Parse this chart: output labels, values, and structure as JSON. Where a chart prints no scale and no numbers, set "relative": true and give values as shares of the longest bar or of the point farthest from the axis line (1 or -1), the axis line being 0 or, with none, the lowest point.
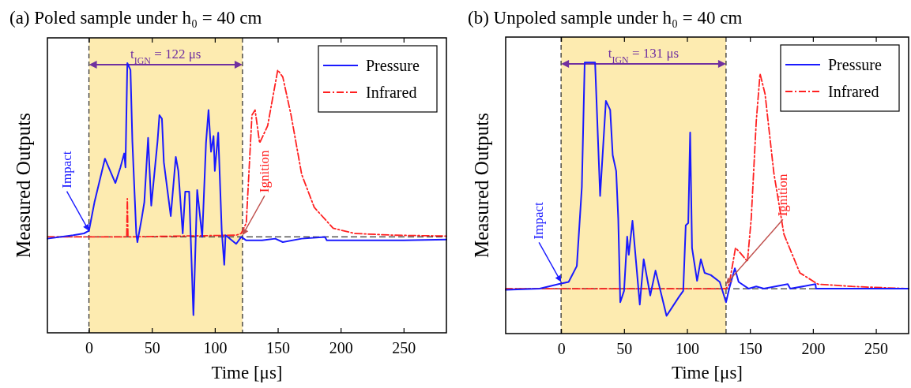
{
  "chart_data": [
    {
      "type": "line",
      "title": "(a)  Poled sample under h₀ = 40 cm",
      "xlabel": "Time  [μs]",
      "ylabel": "Measured Outputs",
      "relative": true,
      "xlim": [
        -33,
        284
      ],
      "xticks": [
        0,
        50,
        100,
        150,
        200,
        250
      ],
      "tick_labels": "x",
      "legend": "top right",
      "series": [
        {
          "name": "Pressure",
          "color": "#1a1aff",
          "line_style": "solid",
          "x": [
            -33,
            -12.5,
            -4,
            0,
            4.4,
            12.7,
            21,
            25,
            28,
            29,
            30.5,
            33,
            34.5,
            37.6,
            38.5,
            42,
            44,
            47,
            49.5,
            54.5,
            56,
            58,
            59.5,
            65,
            69,
            71,
            74.5,
            76.5,
            79.6,
            83,
            86,
            90,
            93,
            95,
            97,
            99,
            100,
            102.7,
            105.5,
            107.5,
            108.5,
            117,
            121,
            125,
            137.5,
            148,
            154,
            169,
            187.5,
            189,
            221,
            250,
            284
          ],
          "values": [
            -0.01,
            0.01,
            0.02,
            0.035,
            0.2,
            0.45,
            0.31,
            0.4,
            0.48,
            0.4,
            1.0,
            0.96,
            0.55,
            0.02,
            -0.03,
            0.11,
            0.2,
            0.57,
            0.18,
            0.55,
            0.7,
            0.68,
            0.43,
            0.12,
            0.46,
            0.38,
            0.02,
            0.26,
            0.26,
            -0.45,
            0.27,
            0.0,
            0.54,
            0.73,
            0.49,
            0.58,
            0.38,
            0.6,
            0.035,
            -0.16,
            0.01,
            -0.04,
            0.0,
            -0.02,
            -0.02,
            -0.01,
            -0.03,
            -0.01,
            0.0,
            -0.02,
            -0.02,
            -0.02,
            -0.015
          ]
        },
        {
          "name": "Infrared",
          "color": "#ff2020",
          "line_style": "dashed",
          "x": [
            -33,
            30,
            30.5,
            31,
            117,
            121,
            125,
            129.5,
            132,
            135.6,
            142,
            150,
            154,
            160.6,
            169,
            179,
            194,
            211,
            242,
            284
          ],
          "values": [
            0.0,
            0.0,
            0.22,
            0.0,
            0.01,
            0.02,
            0.08,
            0.7,
            0.73,
            0.54,
            0.64,
            0.96,
            0.92,
            0.7,
            0.36,
            0.17,
            0.05,
            0.02,
            0.01,
            0.005
          ]
        }
      ],
      "bands": [
        {
          "axis": "x",
          "from": 0,
          "to": 122,
          "label": "t$_{IGN}$ = 122 μs",
          "color": "#fdebb0"
        }
      ],
      "ref_lines": [
        {
          "axis": "y",
          "value": 0,
          "color": "#333333",
          "line_style": "dashed"
        },
        {
          "axis": "x",
          "value": 0,
          "color": "#333333",
          "line_style": "dashed"
        },
        {
          "axis": "x",
          "value": 122,
          "color": "#333333",
          "line_style": "dashed"
        }
      ],
      "annotations": [
        {
          "text": "Impact",
          "x": 0,
          "y": 0.035
        },
        {
          "text": "Ignition",
          "x": 122,
          "y": 0.01
        }
      ]
    },
    {
      "type": "line",
      "title": "(b)  Unpoled sample under h₀ = 40 cm",
      "xlabel": "Time  [μs]",
      "ylabel": "Measured Outputs",
      "relative": true,
      "xlim": [
        -44,
        276
      ],
      "xticks": [
        0,
        50,
        100,
        150,
        200,
        250
      ],
      "tick_labels": "x",
      "legend": "top right",
      "series": [
        {
          "name": "Pressure",
          "color": "#1a1aff",
          "line_style": "solid",
          "x": [
            -44,
            -17,
            -2,
            6,
            12.5,
            16.5,
            18.75,
            27,
            31,
            35.6,
            39,
            41,
            43.75,
            45.4,
            47,
            50,
            52.5,
            53.75,
            56.7,
            62.5,
            65.6,
            70.8,
            75,
            83.75,
            93.75,
            97,
            99,
            101,
            102.5,
            104,
            108,
            111,
            114,
            119,
            126,
            131,
            133.5,
            138,
            141,
            149,
            155,
            161,
            180,
            182,
            202,
            202.5,
            241,
            276
          ],
          "values": [
            -0.005,
            0.0,
            0.02,
            0.03,
            0.1,
            0.45,
            1.0,
            1.0,
            0.41,
            0.83,
            0.79,
            0.59,
            0.52,
            0.31,
            -0.06,
            -0.01,
            0.23,
            0.15,
            0.3,
            -0.07,
            0.13,
            -0.03,
            0.08,
            -0.12,
            -0.035,
            -0.01,
            0.28,
            0.29,
            0.69,
            0.18,
            0.035,
            0.13,
            0.07,
            0.06,
            0.03,
            -0.06,
            0.0,
            0.09,
            0.03,
            0.0,
            0.01,
            0.0,
            0.02,
            0.0,
            0.02,
            0.0,
            0.0,
            0.0
          ]
        },
        {
          "name": "Infrared",
          "color": "#ff2020",
          "line_style": "dashed",
          "x": [
            -44,
            131,
            133.5,
            138.5,
            142,
            148,
            151,
            155,
            158,
            162,
            169,
            177,
            189.6,
            204,
            231,
            276
          ],
          "values": [
            0.0,
            0.0,
            0.02,
            0.18,
            0.16,
            0.12,
            0.31,
            0.74,
            0.95,
            0.86,
            0.51,
            0.24,
            0.07,
            0.02,
            0.01,
            0.0
          ]
        }
      ],
      "bands": [
        {
          "axis": "x",
          "from": 0,
          "to": 131,
          "label": "t$_{IGN}$ = 131 μs",
          "color": "#fdebb0"
        }
      ],
      "ref_lines": [
        {
          "axis": "y",
          "value": 0,
          "color": "#333333",
          "line_style": "dashed"
        },
        {
          "axis": "x",
          "value": 0,
          "color": "#333333",
          "line_style": "dashed"
        },
        {
          "axis": "x",
          "value": 131,
          "color": "#333333",
          "line_style": "dashed"
        }
      ],
      "annotations": [
        {
          "text": "Impact",
          "x": 0,
          "y": 0.03
        },
        {
          "text": "Ignition",
          "x": 131,
          "y": 0.02
        }
      ]
    }
  ]
}
